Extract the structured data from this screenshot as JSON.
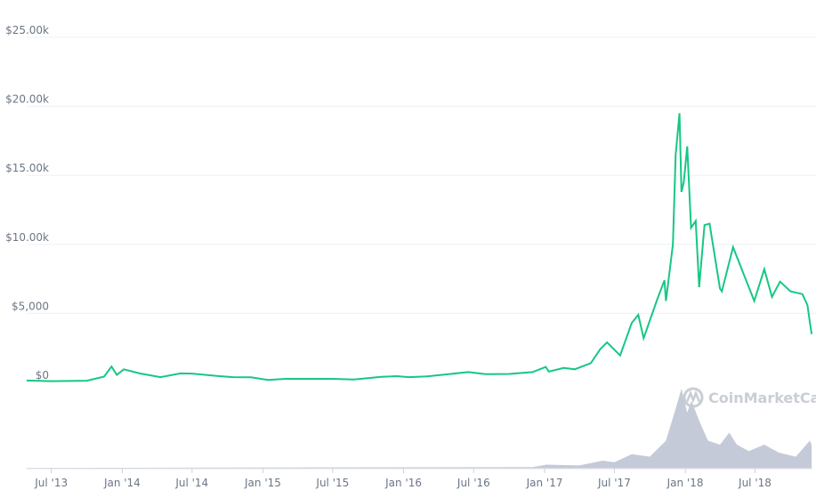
{
  "chart_data": {
    "type": "line",
    "title": "",
    "xlabel": "",
    "ylabel": "",
    "ylim": [
      0,
      25000
    ],
    "grid": true,
    "y_ticks": [
      "$0",
      "$5,000",
      "$10.00k",
      "$15.00k",
      "$20.00k",
      "$25.00k"
    ],
    "y_tick_values": [
      0,
      5000,
      10000,
      15000,
      20000,
      25000
    ],
    "x_ticks": [
      "Jul '13",
      "Jan '14",
      "Jul '14",
      "Jan '15",
      "Jul '15",
      "Jan '16",
      "Jul '16",
      "Jan '17",
      "Jul '17",
      "Jan '18",
      "Jul '18"
    ],
    "x_tick_dates": [
      "2013-07-01",
      "2014-01-01",
      "2014-07-01",
      "2015-01-01",
      "2015-07-01",
      "2016-01-01",
      "2016-07-01",
      "2017-01-01",
      "2017-07-01",
      "2018-01-01",
      "2018-07-01"
    ],
    "xlim": [
      "2013-04-28",
      "2018-11-27"
    ],
    "line_color": "#16c784",
    "volume_color": "#c5cad8",
    "watermark": "CoinMarketCap",
    "series": [
      {
        "points": [
          [
            "2013-04-28",
            135
          ],
          [
            "2013-07-01",
            90
          ],
          [
            "2013-10-01",
            125
          ],
          [
            "2013-11-15",
            420
          ],
          [
            "2013-12-04",
            1150
          ],
          [
            "2013-12-18",
            550
          ],
          [
            "2014-01-05",
            950
          ],
          [
            "2014-02-15",
            650
          ],
          [
            "2014-04-10",
            380
          ],
          [
            "2014-06-01",
            650
          ],
          [
            "2014-07-01",
            640
          ],
          [
            "2014-09-01",
            480
          ],
          [
            "2014-10-15",
            380
          ],
          [
            "2014-12-01",
            375
          ],
          [
            "2015-01-14",
            180
          ],
          [
            "2015-03-01",
            260
          ],
          [
            "2015-07-01",
            260
          ],
          [
            "2015-08-25",
            210
          ],
          [
            "2015-11-04",
            400
          ],
          [
            "2015-12-15",
            450
          ],
          [
            "2016-01-15",
            380
          ],
          [
            "2016-03-01",
            430
          ],
          [
            "2016-06-17",
            750
          ],
          [
            "2016-08-01",
            600
          ],
          [
            "2016-10-01",
            610
          ],
          [
            "2016-12-01",
            750
          ],
          [
            "2017-01-04",
            1120
          ],
          [
            "2017-01-12",
            780
          ],
          [
            "2017-02-20",
            1050
          ],
          [
            "2017-03-20",
            950
          ],
          [
            "2017-05-01",
            1400
          ],
          [
            "2017-05-25",
            2400
          ],
          [
            "2017-06-12",
            2900
          ],
          [
            "2017-07-16",
            1950
          ],
          [
            "2017-08-15",
            4300
          ],
          [
            "2017-09-01",
            4900
          ],
          [
            "2017-09-15",
            3200
          ],
          [
            "2017-10-20",
            6000
          ],
          [
            "2017-11-08",
            7400
          ],
          [
            "2017-11-12",
            5900
          ],
          [
            "2017-11-30",
            10000
          ],
          [
            "2017-12-07",
            16500
          ],
          [
            "2017-12-17",
            19500
          ],
          [
            "2017-12-22",
            13800
          ],
          [
            "2017-12-28",
            14500
          ],
          [
            "2018-01-06",
            17100
          ],
          [
            "2018-01-16",
            11200
          ],
          [
            "2018-01-28",
            11700
          ],
          [
            "2018-02-06",
            6900
          ],
          [
            "2018-02-20",
            11400
          ],
          [
            "2018-03-05",
            11500
          ],
          [
            "2018-04-01",
            6800
          ],
          [
            "2018-04-06",
            6600
          ],
          [
            "2018-05-05",
            9800
          ],
          [
            "2018-06-05",
            7600
          ],
          [
            "2018-06-29",
            5900
          ],
          [
            "2018-07-25",
            8200
          ],
          [
            "2018-08-14",
            6200
          ],
          [
            "2018-09-04",
            7300
          ],
          [
            "2018-10-01",
            6600
          ],
          [
            "2018-11-01",
            6400
          ],
          [
            "2018-11-14",
            5600
          ],
          [
            "2018-11-20",
            4400
          ],
          [
            "2018-11-25",
            3500
          ]
        ]
      }
    ],
    "volume_relative": [
      [
        "2013-04-28",
        0.01
      ],
      [
        "2016-12-01",
        0.02
      ],
      [
        "2017-01-05",
        0.05
      ],
      [
        "2017-04-01",
        0.04
      ],
      [
        "2017-06-01",
        0.1
      ],
      [
        "2017-07-01",
        0.08
      ],
      [
        "2017-08-15",
        0.18
      ],
      [
        "2017-10-01",
        0.15
      ],
      [
        "2017-11-12",
        0.35
      ],
      [
        "2017-12-07",
        0.75
      ],
      [
        "2017-12-22",
        1.0
      ],
      [
        "2018-01-06",
        0.7
      ],
      [
        "2018-01-17",
        0.85
      ],
      [
        "2018-02-06",
        0.6
      ],
      [
        "2018-03-01",
        0.35
      ],
      [
        "2018-04-01",
        0.3
      ],
      [
        "2018-04-25",
        0.45
      ],
      [
        "2018-05-15",
        0.3
      ],
      [
        "2018-06-15",
        0.22
      ],
      [
        "2018-07-25",
        0.3
      ],
      [
        "2018-09-01",
        0.2
      ],
      [
        "2018-10-15",
        0.15
      ],
      [
        "2018-11-20",
        0.35
      ],
      [
        "2018-11-25",
        0.3
      ]
    ]
  }
}
